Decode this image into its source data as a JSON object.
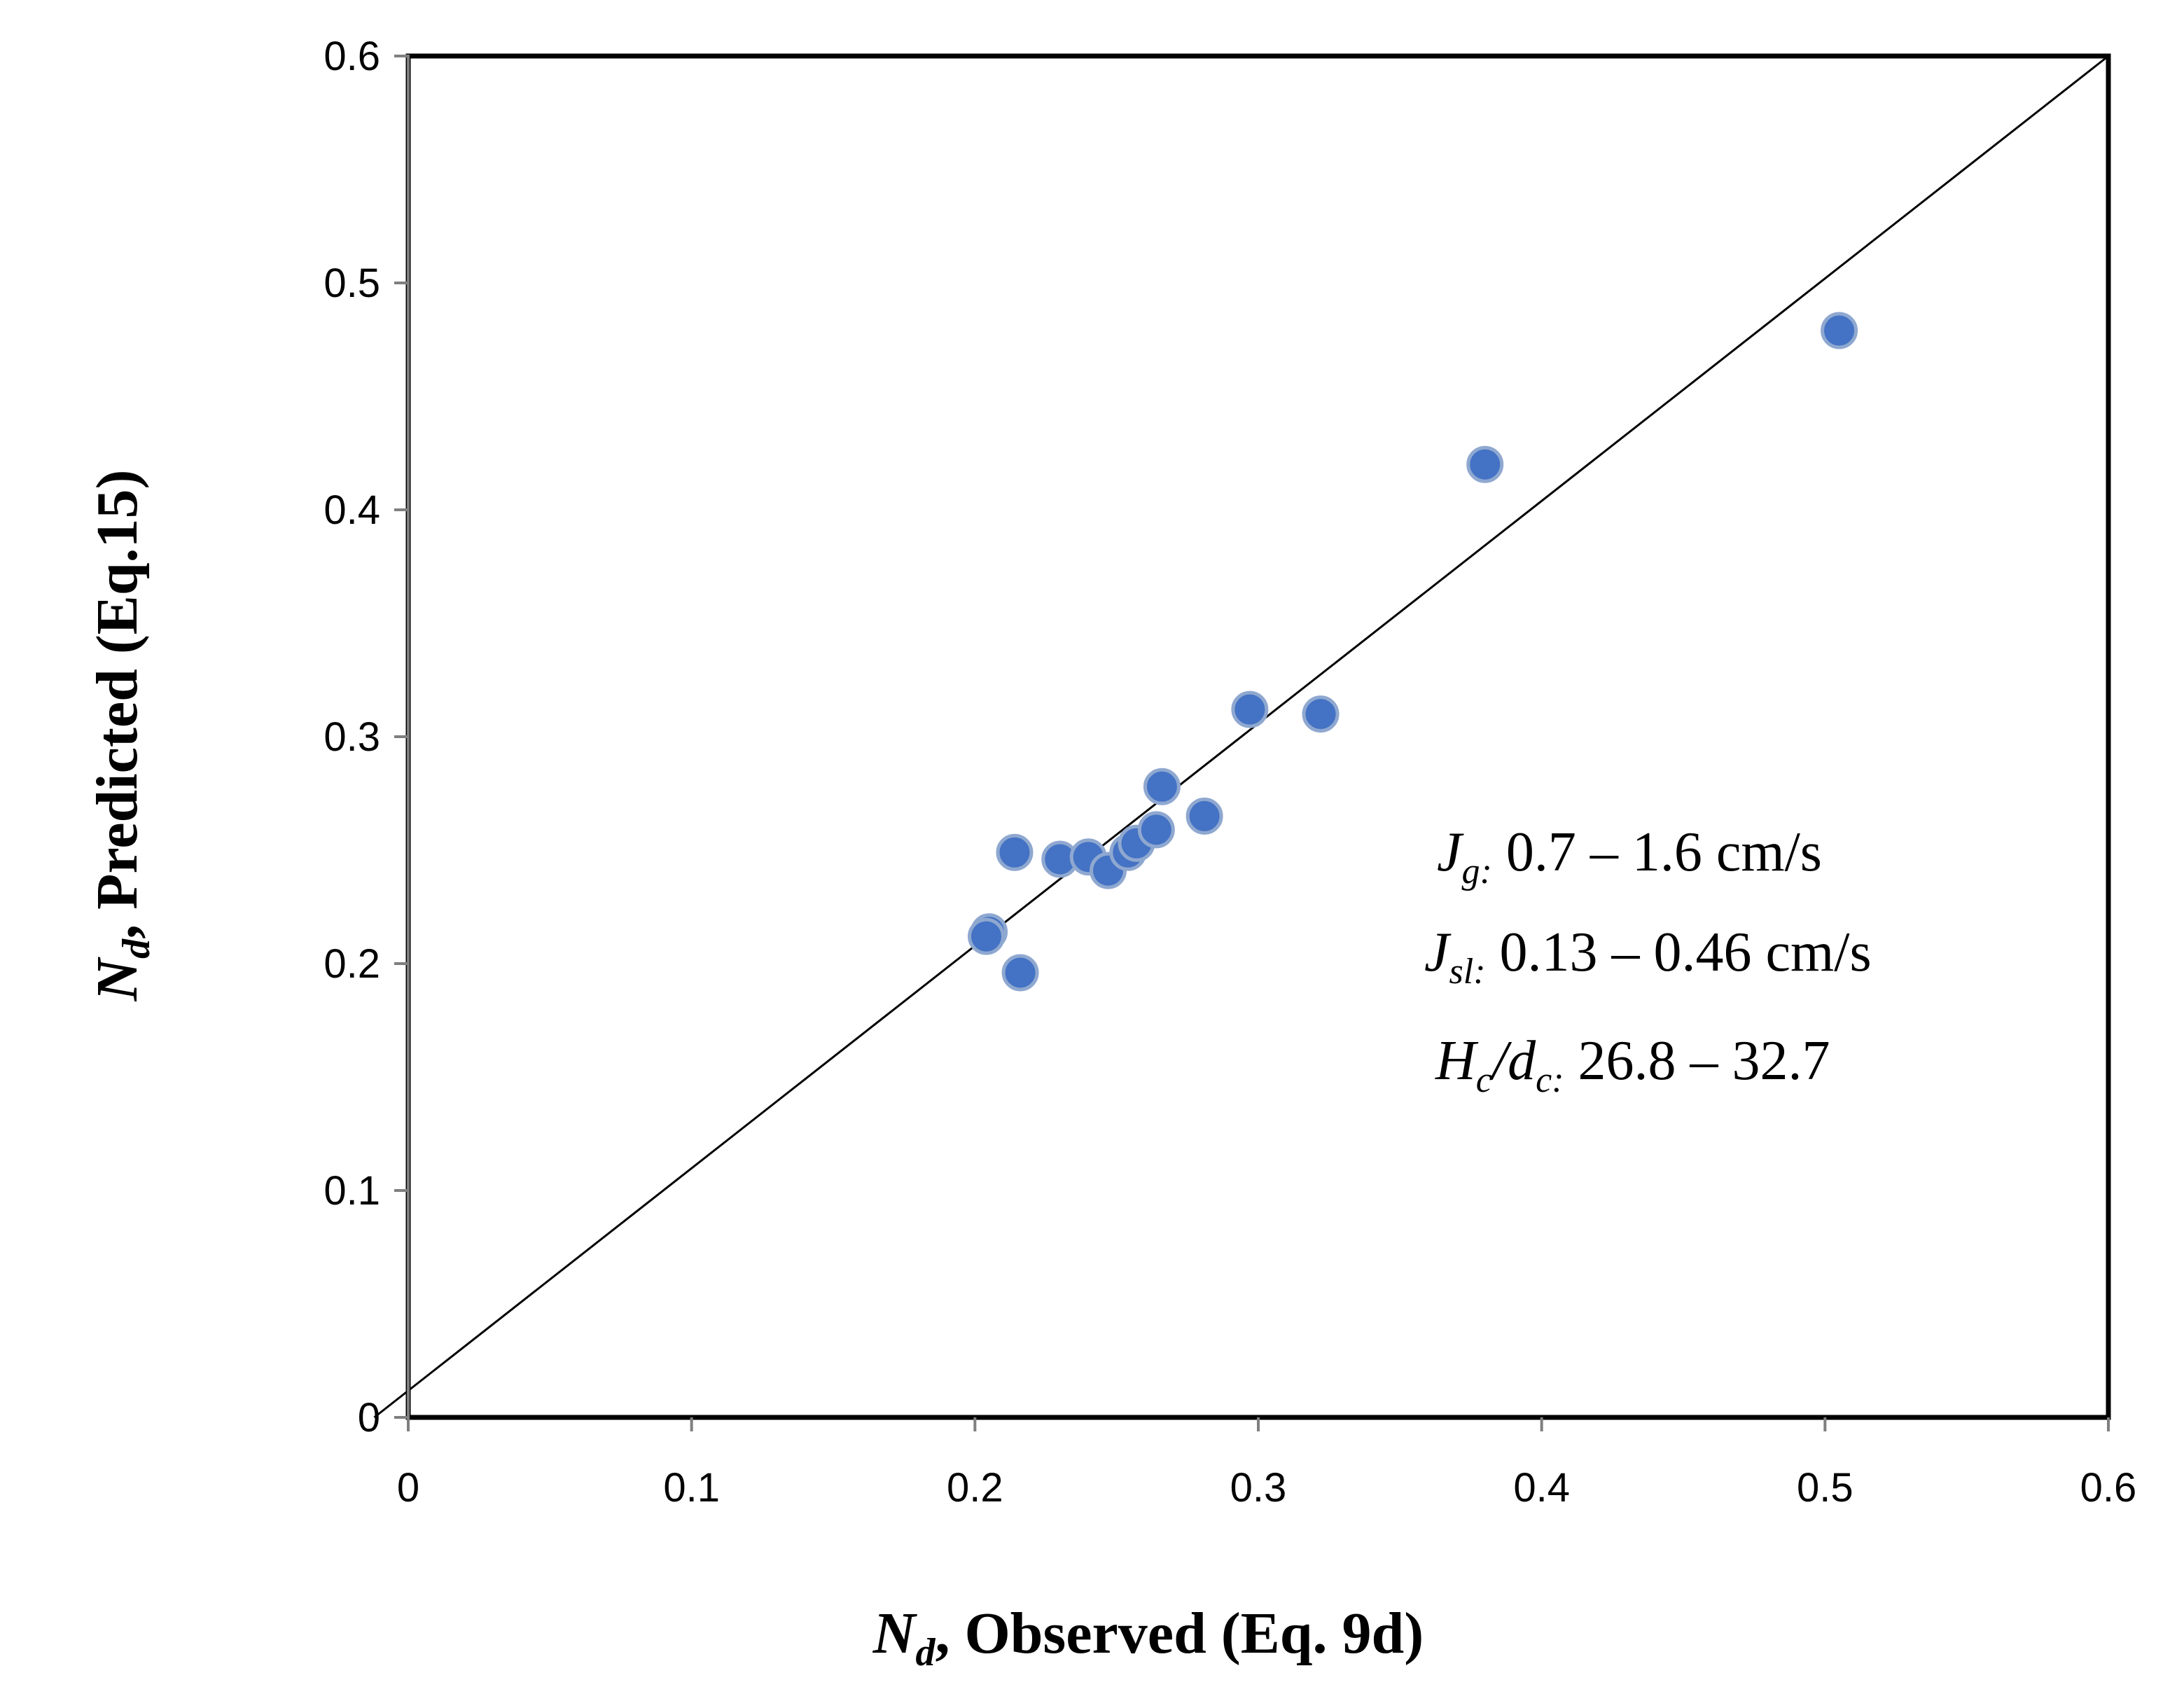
{
  "chart_data": {
    "type": "scatter",
    "title": "",
    "xlabel": {
      "symbol": "N",
      "subscript": "d",
      "text": ", Observed (Eq. 9d)"
    },
    "ylabel": {
      "symbol": "N",
      "subscript": "d",
      "text": ", Predicted (Eq.15)"
    },
    "xlim": [
      0,
      0.6
    ],
    "ylim": [
      0,
      0.6
    ],
    "xticks": [
      "0",
      "0.1",
      "0.2",
      "0.3",
      "0.4",
      "0.5",
      "0.6"
    ],
    "yticks": [
      "0",
      "0.1",
      "0.2",
      "0.3",
      "0.4",
      "0.5",
      "0.6"
    ],
    "grid": false,
    "marker_color": "#4472C4",
    "marker_edge_color": "#8FA8D0",
    "points": [
      {
        "x": 0.205,
        "y": 0.214
      },
      {
        "x": 0.204,
        "y": 0.212
      },
      {
        "x": 0.216,
        "y": 0.196
      },
      {
        "x": 0.214,
        "y": 0.249
      },
      {
        "x": 0.23,
        "y": 0.246
      },
      {
        "x": 0.24,
        "y": 0.247
      },
      {
        "x": 0.247,
        "y": 0.241
      },
      {
        "x": 0.254,
        "y": 0.249
      },
      {
        "x": 0.257,
        "y": 0.253
      },
      {
        "x": 0.264,
        "y": 0.259
      },
      {
        "x": 0.266,
        "y": 0.278
      },
      {
        "x": 0.281,
        "y": 0.265
      },
      {
        "x": 0.297,
        "y": 0.312
      },
      {
        "x": 0.322,
        "y": 0.31
      },
      {
        "x": 0.38,
        "y": 0.42
      },
      {
        "x": 0.505,
        "y": 0.479
      }
    ],
    "reference_line": {
      "x": [
        -0.012,
        0.6
      ],
      "y": [
        0.0,
        0.6
      ]
    },
    "annotations": [
      {
        "var": "J",
        "sub": "g:",
        "text": " 0.7 – 1.6 cm/s"
      },
      {
        "var": "J",
        "sub": "sl:",
        "text": " 0.13 – 0.46 cm/s"
      },
      {
        "var": "H",
        "sub": "c",
        "slash": "/",
        "var2": "d",
        "sub2": "c:",
        "text": " 26.8 – 32.7"
      }
    ]
  }
}
